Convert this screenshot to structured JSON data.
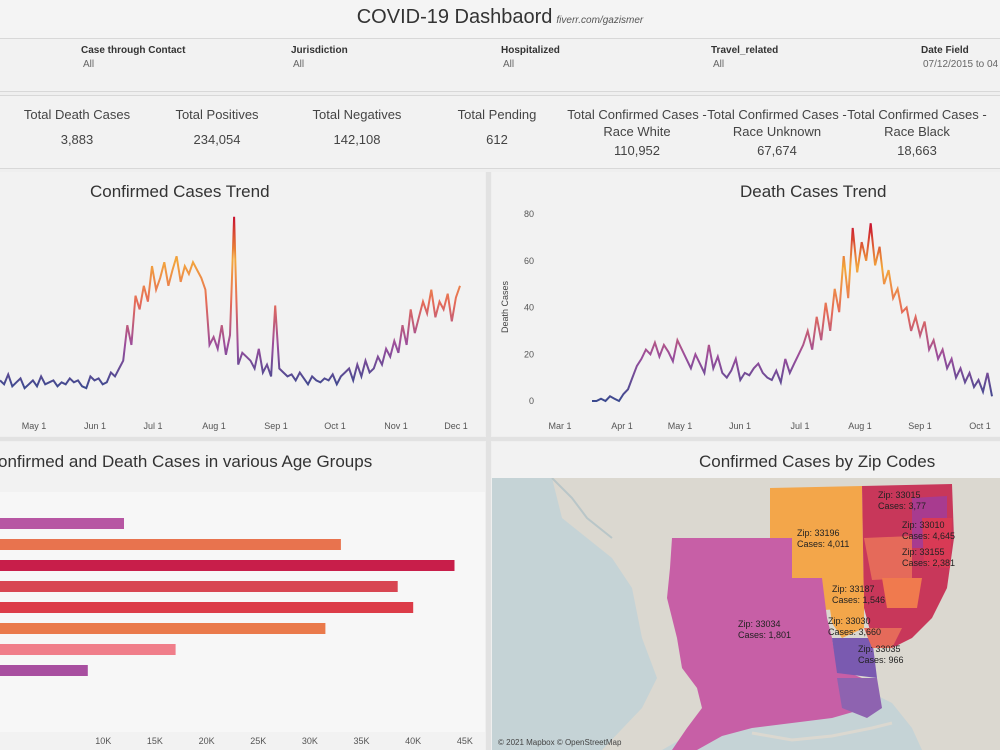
{
  "header": {
    "title": "COVID-19 Dashbaord",
    "credit": "fiverr.com/gazismer"
  },
  "filters": [
    {
      "label": "Case through Contact",
      "value": "All"
    },
    {
      "label": "Jurisdiction",
      "value": "All"
    },
    {
      "label": "Hospitalized",
      "value": "All"
    },
    {
      "label": "Travel_related",
      "value": "All"
    },
    {
      "label": "Date Field",
      "value": "07/12/2015 to 04"
    }
  ],
  "kpis": [
    {
      "label": "Total Death Cases",
      "value": "3,883"
    },
    {
      "label": "Total Positives",
      "value": "234,054"
    },
    {
      "label": "Total Negatives",
      "value": "142,108"
    },
    {
      "label": "Total Pending",
      "value": "612"
    },
    {
      "label": "Total Confirmed Cases - Race White",
      "value": "110,952"
    },
    {
      "label": "Total Confirmed Cases - Race Unknown",
      "value": "67,674"
    },
    {
      "label": "Total Confirmed Cases - Race Black",
      "value": "18,663"
    }
  ],
  "panels": {
    "confirmed_trend": "Confirmed Cases Trend",
    "death_trend": "Death Cases Trend",
    "age_groups": "onfirmed and Death Cases in various Age Groups",
    "zip_map": "Confirmed Cases by Zip Codes"
  },
  "map": {
    "attribution": "© 2021 Mapbox © OpenStreetMap",
    "labels": [
      {
        "text": "Zip: 33196",
        "text2": "Cases: 4,011"
      },
      {
        "text": "Zip: 33034",
        "text2": "Cases: 1,801"
      },
      {
        "text": "Zip: 33187",
        "text2": "Cases: 1,546"
      },
      {
        "text": "Zip: 33030",
        "text2": "Cases: 3,660"
      },
      {
        "text": "Zip: 33035",
        "text2": "Cases: 966"
      },
      {
        "text": "Zip: 33015",
        "text2": "Cases: 3,77"
      },
      {
        "text": "Zip: 33010",
        "text2": "Cases: 4,645"
      },
      {
        "text": "Zip: 33155",
        "text2": "Cases: 2,381"
      }
    ]
  },
  "chart_data": [
    {
      "type": "line",
      "title": "Confirmed Cases Trend",
      "x_ticks": [
        "May 1",
        "Jun 1",
        "Jul 1",
        "Aug 1",
        "Sep 1",
        "Oct 1",
        "Nov 1",
        "Dec 1"
      ],
      "y_values": [
        12,
        10,
        15,
        9,
        11,
        13,
        8,
        10,
        12,
        9,
        14,
        10,
        11,
        12,
        9,
        11,
        10,
        13,
        11,
        12,
        9,
        8,
        14,
        12,
        13,
        10,
        11,
        16,
        14,
        18,
        22,
        40,
        30,
        55,
        48,
        60,
        52,
        70,
        58,
        64,
        72,
        60,
        68,
        75,
        62,
        70,
        66,
        72,
        68,
        64,
        58,
        30,
        34,
        28,
        40,
        25,
        35,
        95,
        20,
        26,
        24,
        22,
        18,
        28,
        16,
        20,
        14,
        50,
        18,
        16,
        14,
        15,
        12,
        16,
        13,
        10,
        14,
        12,
        11,
        13,
        12,
        15,
        10,
        14,
        16,
        18,
        12,
        20,
        14,
        22,
        16,
        18,
        24,
        20,
        28,
        24,
        32,
        26,
        40,
        30,
        48,
        36,
        44,
        52,
        46,
        58,
        44,
        52,
        48,
        56,
        42,
        54,
        60
      ],
      "ylim": [
        0,
        100
      ],
      "gradient": [
        "#3b4a8f",
        "#9a4d9c",
        "#e56b58",
        "#f3a73b",
        "#c8102e"
      ]
    },
    {
      "type": "line",
      "title": "Death Cases Trend",
      "ylabel": "Death Cases",
      "y_ticks": [
        "0",
        "20",
        "40",
        "60",
        "80"
      ],
      "x_ticks": [
        "Mar 1",
        "Apr 1",
        "May 1",
        "Jun 1",
        "Jul 1",
        "Aug 1",
        "Sep 1",
        "Oct 1"
      ],
      "y_values": [
        0,
        0,
        1,
        0,
        2,
        1,
        0,
        3,
        5,
        10,
        15,
        18,
        22,
        20,
        25,
        19,
        24,
        21,
        17,
        26,
        22,
        18,
        14,
        20,
        16,
        12,
        24,
        14,
        19,
        12,
        10,
        13,
        18,
        9,
        12,
        11,
        14,
        16,
        12,
        10,
        9,
        13,
        8,
        18,
        12,
        16,
        20,
        24,
        30,
        22,
        36,
        26,
        42,
        30,
        48,
        38,
        62,
        44,
        74,
        55,
        68,
        60,
        76,
        58,
        66,
        50,
        56,
        44,
        48,
        38,
        40,
        30,
        36,
        28,
        34,
        22,
        26,
        18,
        22,
        14,
        18,
        10,
        14,
        8,
        12,
        6,
        9,
        4,
        12,
        2
      ],
      "ylim": [
        0,
        80
      ],
      "gradient": [
        "#3b4a8f",
        "#9a4d9c",
        "#e56b58",
        "#f3a73b",
        "#c8102e"
      ]
    },
    {
      "type": "bar",
      "title": "onfirmed and Death Cases in various Age Groups",
      "x_ticks": [
        "10K",
        "15K",
        "20K",
        "25K",
        "30K",
        "35K",
        "40K",
        "45K"
      ],
      "values": [
        12000,
        33000,
        44000,
        38500,
        40000,
        31500,
        17000,
        8500
      ],
      "colors": [
        "#b756a3",
        "#e8734e",
        "#c81e4a",
        "#d84652",
        "#dc3c48",
        "#ea7a4b",
        "#f07e8a",
        "#a84fa0"
      ],
      "xlim": [
        0,
        45500
      ]
    }
  ]
}
